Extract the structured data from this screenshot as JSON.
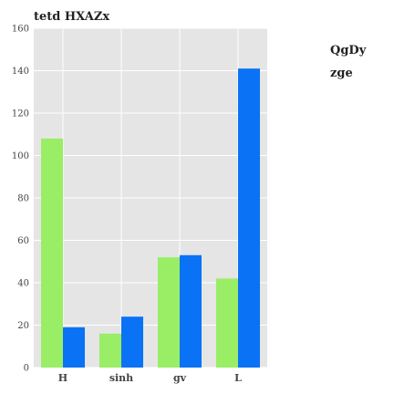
{
  "chart_data": {
    "type": "bar",
    "title": "tetd HXAZx",
    "xlabel": "",
    "ylabel": "",
    "categories": [
      "H",
      "sinh",
      "gv",
      "L"
    ],
    "series": [
      {
        "name": "QgDy",
        "values": [
          108,
          16,
          52,
          42
        ],
        "color": "#99ee66"
      },
      {
        "name": "zge",
        "values": [
          19,
          24,
          53,
          141
        ],
        "color": "#0a72f5"
      }
    ],
    "ylim": [
      0,
      160
    ],
    "yticks": [
      0,
      20,
      40,
      60,
      80,
      100,
      120,
      140,
      160
    ],
    "grid": true,
    "legend": "right",
    "colors": {
      "plot_bg": "#e5e5e5",
      "grid": "#ffffff"
    }
  }
}
